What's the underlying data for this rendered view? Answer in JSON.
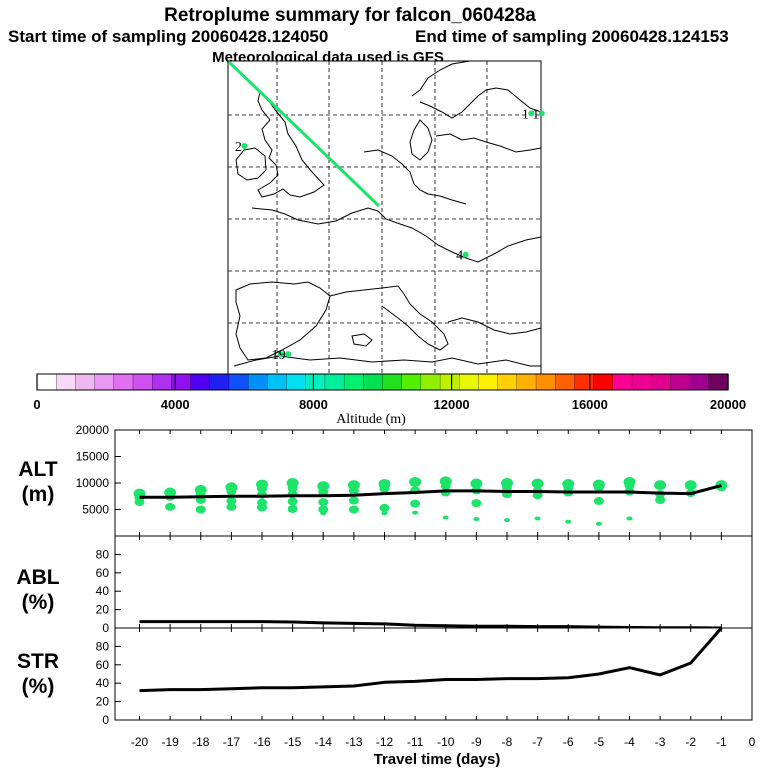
{
  "header": {
    "title": "Retroplume summary for falcon_060428a",
    "start": "Start time of sampling 20060428.124050",
    "end": "End time of sampling 20060428.124153",
    "met": "Meteorological data used is GFS"
  },
  "map": {
    "markers": [
      {
        "label": "1",
        "lon": 22.5,
        "lat": 56.0
      },
      {
        "label": "1",
        "lon": 23.5,
        "lat": 56.0
      },
      {
        "label": "2",
        "lon": -5.0,
        "lat": 53.5
      },
      {
        "label": "4",
        "lon": 16.2,
        "lat": 45.2
      },
      {
        "label": "1",
        "lon": -1.5,
        "lat": 37.6
      },
      {
        "label": "9",
        "lon": -0.8,
        "lat": 37.6
      }
    ],
    "plume_colors": {
      "line": "#1ee36a",
      "dot": "#1ee36a"
    }
  },
  "colorbar": {
    "label": "Altitude (m)",
    "ticks": [
      "0",
      "4000",
      "8000",
      "12000",
      "16000",
      "20000"
    ],
    "colors": [
      "#ffffff",
      "#f8d8f8",
      "#f0b8f0",
      "#e898f0",
      "#e070f0",
      "#d050f0",
      "#b030f0",
      "#9010f0",
      "#5000f0",
      "#2020f0",
      "#1050f8",
      "#0090f8",
      "#00c0f8",
      "#00e0f0",
      "#00f0c0",
      "#00f0a0",
      "#00f070",
      "#00e050",
      "#20e020",
      "#50f000",
      "#90f000",
      "#c0f000",
      "#e8f800",
      "#fff000",
      "#ffd000",
      "#ffb000",
      "#ff9000",
      "#ff6000",
      "#ff3000",
      "#ff0000",
      "#ff0090",
      "#f00090",
      "#e00090",
      "#c00090",
      "#a00090",
      "#700060"
    ]
  },
  "chart_data": [
    {
      "type": "scatter",
      "panel": "ALT",
      "ylabel_line1": "ALT",
      "ylabel_line2": "(m)",
      "x": [
        -20,
        -19,
        -18,
        -17,
        -16,
        -15,
        -14,
        -13,
        -12,
        -11,
        -10,
        -9,
        -8,
        -7,
        -6,
        -5,
        -4,
        -3,
        -2,
        -1
      ],
      "median_line": [
        7300,
        7300,
        7400,
        7500,
        7500,
        7600,
        7600,
        7700,
        8000,
        8200,
        8500,
        8500,
        8400,
        8400,
        8300,
        8300,
        8300,
        8100,
        8000,
        9500
      ],
      "clusters": [
        {
          "x": -20,
          "y": [
            8000,
            7200,
            6400
          ]
        },
        {
          "x": -19,
          "y": [
            8200,
            7400,
            5500
          ]
        },
        {
          "x": -18,
          "y": [
            8700,
            7700,
            6800,
            5000
          ]
        },
        {
          "x": -17,
          "y": [
            9200,
            8400,
            6600,
            5500
          ]
        },
        {
          "x": -16,
          "y": [
            9700,
            8900,
            7800,
            6300,
            5400
          ]
        },
        {
          "x": -15,
          "y": [
            10000,
            9000,
            7900,
            6500,
            5100
          ]
        },
        {
          "x": -14,
          "y": [
            9400,
            8300,
            6400,
            5000,
            4300
          ]
        },
        {
          "x": -13,
          "y": [
            9600,
            8500,
            6700,
            5000
          ]
        },
        {
          "x": -12,
          "y": [
            9800,
            8900,
            5300,
            4300
          ]
        },
        {
          "x": -11,
          "y": [
            10200,
            8600,
            6100,
            4400
          ]
        },
        {
          "x": -10,
          "y": [
            10300,
            9400,
            8200,
            3500
          ]
        },
        {
          "x": -9,
          "y": [
            9900,
            8600,
            6200,
            3200
          ]
        },
        {
          "x": -8,
          "y": [
            10000,
            9200,
            8400,
            7900,
            3000
          ]
        },
        {
          "x": -7,
          "y": [
            9900,
            8500,
            7700,
            3300
          ]
        },
        {
          "x": -6,
          "y": [
            9800,
            9100,
            8200,
            2700
          ]
        },
        {
          "x": -5,
          "y": [
            9700,
            9100,
            6600,
            2300
          ]
        },
        {
          "x": -4,
          "y": [
            10200,
            9500,
            8400,
            3300
          ]
        },
        {
          "x": -3,
          "y": [
            9600,
            7900,
            6800
          ]
        },
        {
          "x": -2,
          "y": [
            9600,
            8100
          ]
        },
        {
          "x": -1,
          "y": [
            9600,
            9200
          ]
        }
      ],
      "yticks": [
        "20000",
        "15000",
        "10000",
        "5000"
      ],
      "ylim": [
        0,
        20000
      ]
    },
    {
      "type": "line",
      "panel": "ABL",
      "ylabel_line1": "ABL",
      "ylabel_line2": "(%)",
      "x": [
        -20,
        -19,
        -18,
        -17,
        -16,
        -15,
        -14,
        -13,
        -12,
        -11,
        -10,
        -9,
        -8,
        -7,
        -6,
        -5,
        -4,
        -3,
        -2,
        -1
      ],
      "values": [
        7,
        7,
        7,
        7,
        7,
        6.5,
        5.5,
        5,
        4.5,
        3,
        2.5,
        2,
        2,
        1.5,
        1.5,
        1,
        0.5,
        0.3,
        0.2,
        0
      ],
      "yticks": [
        "80",
        "60",
        "40",
        "20",
        "0"
      ],
      "ylim": [
        0,
        100
      ]
    },
    {
      "type": "line",
      "panel": "STR",
      "ylabel_line1": "STR",
      "ylabel_line2": "(%)",
      "x": [
        -20,
        -19,
        -18,
        -17,
        -16,
        -15,
        -14,
        -13,
        -12,
        -11,
        -10,
        -9,
        -8,
        -7,
        -6,
        -5,
        -4,
        -3,
        -2,
        -1
      ],
      "values": [
        32,
        33,
        33,
        34,
        35,
        35,
        36,
        37,
        41,
        42,
        44,
        44,
        45,
        45,
        46,
        50,
        57,
        49,
        62,
        100
      ],
      "yticks": [
        "80",
        "60",
        "40",
        "20",
        "0"
      ],
      "ylim": [
        0,
        100
      ]
    }
  ],
  "xaxis": {
    "label": "Travel time (days)",
    "ticks": [
      "-20",
      "-19",
      "-18",
      "-17",
      "-16",
      "-15",
      "-14",
      "-13",
      "-12",
      "-11",
      "-10",
      "-9",
      "-8",
      "-7",
      "-6",
      "-5",
      "-4",
      "-3",
      "-2",
      "-1",
      "0"
    ]
  }
}
